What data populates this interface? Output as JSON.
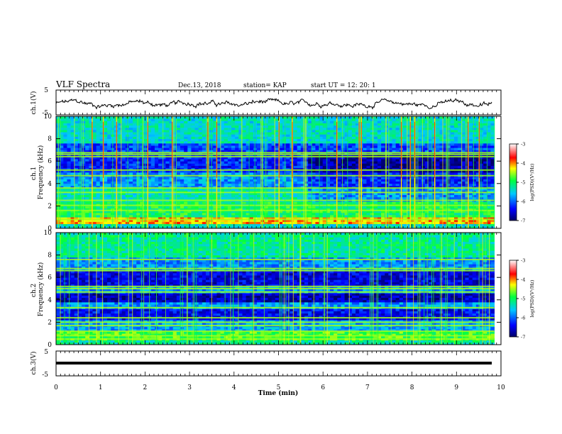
{
  "header": {
    "title": "VLF Spectra",
    "date": "Dec.13, 2018",
    "station": "station= KAP",
    "start": "start  UT =   12: 20: 1"
  },
  "chart_data": [
    {
      "type": "line",
      "name": "ch1-waveform",
      "ylabel": "ch.1(V)",
      "ylim": [
        -5,
        5
      ],
      "yticks": [
        "5",
        "-5"
      ],
      "xlim": [
        0,
        10
      ],
      "approx_amplitude_range": [
        -2.5,
        1.5
      ]
    },
    {
      "type": "heatmap",
      "name": "ch1-spectrogram",
      "ylabel": "ch.1 Frequency (kHz)",
      "xlim": [
        0,
        9.85
      ],
      "ylim": [
        0,
        10
      ],
      "yticks": [
        "0",
        "2",
        "4",
        "6",
        "8",
        "10"
      ],
      "value_label": "log(PSD)(V²/Hz)",
      "value_range": [
        -7,
        -3
      ],
      "colorbar_ticks": [
        "-3",
        "-4",
        "-5",
        "-6",
        "-7"
      ],
      "strong_broadband_impulse_times_min": [
        0.8,
        1.05,
        1.35,
        2.05,
        2.6,
        3.4,
        3.6,
        5.0,
        5.3,
        6.3,
        6.8,
        6.85,
        7.75,
        7.95,
        8.05,
        8.5,
        9.25,
        9.5
      ],
      "persistent_lines_khz": [
        0.8,
        1.6,
        2.05,
        2.5,
        3.2,
        3.6,
        4.7,
        5.2,
        6.4,
        6.6,
        6.75
      ]
    },
    {
      "type": "heatmap",
      "name": "ch2-spectrogram",
      "ylabel": "ch.2 Frequency (kHz)",
      "xlim": [
        0,
        9.85
      ],
      "ylim": [
        0,
        10
      ],
      "yticks": [
        "0",
        "2",
        "4",
        "6",
        "8",
        "10"
      ],
      "value_label": "log(PSD)(V²/Hz)",
      "value_range": [
        -7,
        -3
      ],
      "colorbar_ticks": [
        "-3",
        "-4",
        "-5",
        "-6",
        "-7"
      ],
      "persistent_lines_khz": [
        0.5,
        0.8,
        1.2,
        1.7,
        2.0,
        2.4,
        3.3,
        4.7,
        5.0,
        5.2,
        6.6,
        6.8,
        7.6
      ]
    },
    {
      "type": "line",
      "name": "ch3-waveform",
      "ylabel": "ch.3(V)",
      "ylim": [
        -5,
        5
      ],
      "yticks": [
        "5",
        "-5"
      ],
      "xlim": [
        0,
        10
      ],
      "constant_value": 0
    }
  ],
  "xaxis": {
    "label": "Time (min)",
    "ticks": [
      "0",
      "1",
      "2",
      "3",
      "4",
      "5",
      "6",
      "7",
      "8",
      "9",
      "10"
    ]
  },
  "colors": {
    "axes": "#000000",
    "background": "#ffffff",
    "colormap": [
      "#000066",
      "#0000ff",
      "#00ffff",
      "#00ff00",
      "#ffff00",
      "#ff0000",
      "#ffffff"
    ]
  }
}
